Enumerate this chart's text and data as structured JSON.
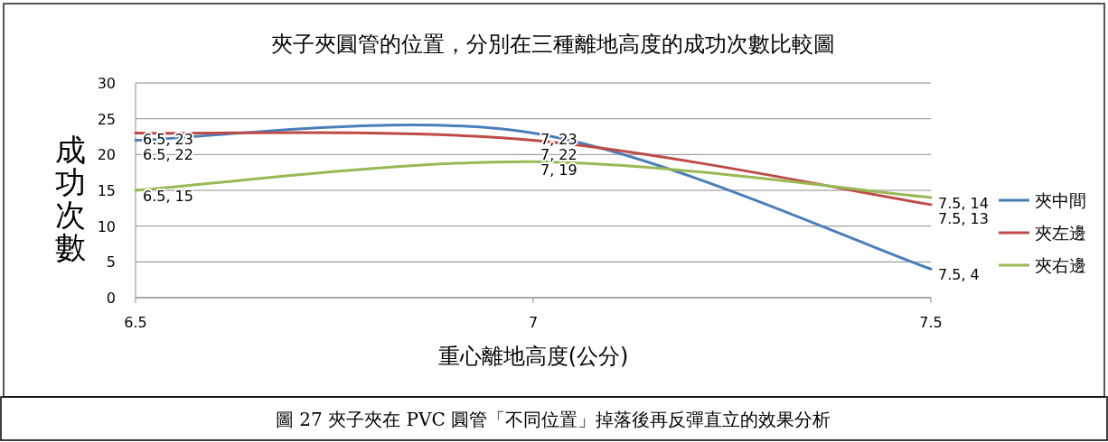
{
  "chart_data": {
    "type": "line",
    "title": "夾子夾圓管的位置，分別在三種離地高度的成功次數比較圖",
    "xlabel": "重心離地高度(公分)",
    "ylabel": "成功次數",
    "x": [
      6.5,
      7,
      7.5
    ],
    "series": [
      {
        "name": "夾中間",
        "color": "#4a7ebb",
        "values": [
          22,
          23,
          4
        ],
        "value_labels": [
          "6.5, 22",
          "7, 23",
          "7.5, 4"
        ]
      },
      {
        "name": "夾左邊",
        "color": "#be4b48",
        "values": [
          23,
          22,
          13
        ],
        "value_labels": [
          "6.5, 23",
          "7, 22",
          "7.5, 13"
        ]
      },
      {
        "name": "夾右邊",
        "color": "#98b954",
        "values": [
          15,
          19,
          14
        ],
        "value_labels": [
          "6.5, 15",
          "7, 19",
          "7.5, 14"
        ]
      }
    ],
    "xlim": [
      6.5,
      7.5
    ],
    "xticks": [
      6.5,
      7,
      7.5
    ],
    "ylim": [
      0,
      30
    ],
    "yticks": [
      0,
      5,
      10,
      15,
      20,
      25,
      30
    ],
    "grid": "y",
    "legend": "right",
    "marker": "none",
    "line_style": "solid",
    "annotations": [
      "圖 27 夾子夾在 PVC 圓管「不同位置」掉落後再反彈直立的效果分析"
    ]
  }
}
